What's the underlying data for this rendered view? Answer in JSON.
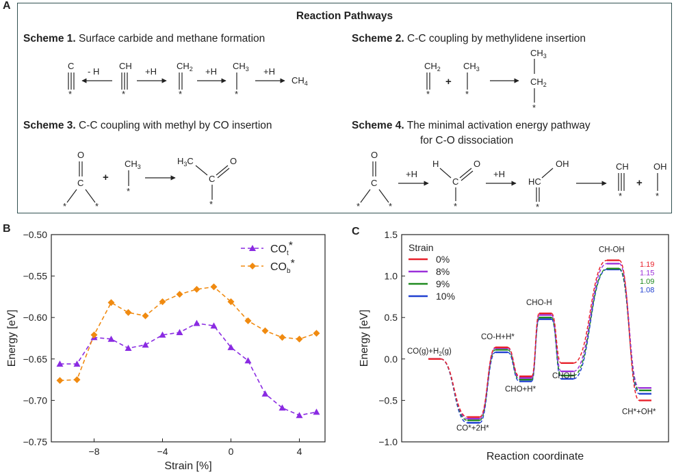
{
  "panel_a": {
    "letter": "A",
    "title": "Reaction Pathways",
    "schemes": [
      {
        "label": "Scheme 1.",
        "text": "Surface carbide and methane formation"
      },
      {
        "label": "Scheme 2.",
        "text": "C-C coupling by methylidene insertion"
      },
      {
        "label": "Scheme 3.",
        "text": "C-C coupling with methyl by CO insertion"
      },
      {
        "label": "Scheme 4.",
        "text": "The minimal activation energy pathway",
        "text2": "for C-O dissociation"
      }
    ],
    "scheme1": {
      "species": [
        "C",
        "CH",
        "CH2",
        "CH3",
        "CH4"
      ],
      "steps": [
        "- H",
        "+H",
        "+H",
        "+H"
      ]
    },
    "scheme2": {
      "plus": "+",
      "product": [
        "CH3",
        "CH2"
      ]
    },
    "scheme3": {
      "atoms": [
        "O",
        "C",
        "H3C",
        "CH3"
      ],
      "plus": "+"
    },
    "scheme4": {
      "steps": [
        "+H",
        "+H"
      ],
      "species": [
        "O",
        "C",
        "H",
        "HC",
        "OH",
        "CH",
        "OH"
      ],
      "plus": "+"
    }
  },
  "chart_data": [
    {
      "type": "line",
      "panel": "B",
      "xlabel": "Strain [%]",
      "ylabel": "Energy [eV]",
      "xlim": [
        -10.5,
        5.5
      ],
      "ylim": [
        -0.75,
        -0.5
      ],
      "xticks": [
        -8,
        -4,
        0,
        4
      ],
      "yticks": [
        -0.75,
        -0.7,
        -0.65,
        -0.6,
        -0.55,
        -0.5
      ],
      "x": [
        -10,
        -9,
        -8,
        -7,
        -6,
        -5,
        -4,
        -3,
        -2,
        -1,
        0,
        1,
        2,
        3,
        4,
        5
      ],
      "series": [
        {
          "name": "CO",
          "sub": "t",
          "sup": "*",
          "color": "#8a2be2",
          "marker": "triangle",
          "values": [
            -0.656,
            -0.656,
            -0.624,
            -0.626,
            -0.637,
            -0.633,
            -0.621,
            -0.618,
            -0.607,
            -0.61,
            -0.636,
            -0.652,
            -0.692,
            -0.709,
            -0.718,
            -0.714
          ]
        },
        {
          "name": "CO",
          "sub": "b",
          "sup": "*",
          "color": "#f08a10",
          "marker": "diamond",
          "values": [
            -0.676,
            -0.675,
            -0.621,
            -0.582,
            -0.594,
            -0.598,
            -0.581,
            -0.572,
            -0.566,
            -0.563,
            -0.581,
            -0.604,
            -0.616,
            -0.624,
            -0.626,
            -0.619
          ]
        }
      ]
    },
    {
      "type": "energy-profile",
      "panel": "C",
      "xlabel": "Reaction coordinate",
      "ylabel": "Energy [eV]",
      "ylim": [
        -1.0,
        1.5
      ],
      "yticks": [
        -1.0,
        -0.5,
        0.0,
        0.5,
        1.0,
        1.5
      ],
      "legend_title": "Strain",
      "states": [
        {
          "label": "CO(g)+H2(g)",
          "sub": "CO(g)+H",
          "sub2": "2",
          "sub3": "(g)"
        },
        {
          "label": "CO*+2H*"
        },
        {
          "label": "CO-H+H*"
        },
        {
          "label": "CHO+H*"
        },
        {
          "label": "CHO-H"
        },
        {
          "label": "CHOH"
        },
        {
          "label": "CH-OH"
        },
        {
          "label": "CH*+OH*"
        }
      ],
      "series": [
        {
          "name": "0%",
          "color": "#e8202a",
          "values": [
            0.0,
            -0.7,
            0.14,
            -0.21,
            0.55,
            -0.05,
            1.19,
            -0.5
          ]
        },
        {
          "name": "8%",
          "color": "#9b30d9",
          "values": [
            0.0,
            -0.72,
            0.13,
            -0.23,
            0.53,
            -0.15,
            1.15,
            -0.35
          ]
        },
        {
          "name": "9%",
          "color": "#1f8a1f",
          "values": [
            0.0,
            -0.74,
            0.11,
            -0.25,
            0.5,
            -0.2,
            1.09,
            -0.38
          ]
        },
        {
          "name": "10%",
          "color": "#1f3fd0",
          "values": [
            0.0,
            -0.77,
            0.08,
            -0.27,
            0.48,
            -0.24,
            1.08,
            -0.42
          ]
        }
      ],
      "annotations": [
        "1.19",
        "1.15",
        "1.09",
        "1.08"
      ]
    }
  ]
}
